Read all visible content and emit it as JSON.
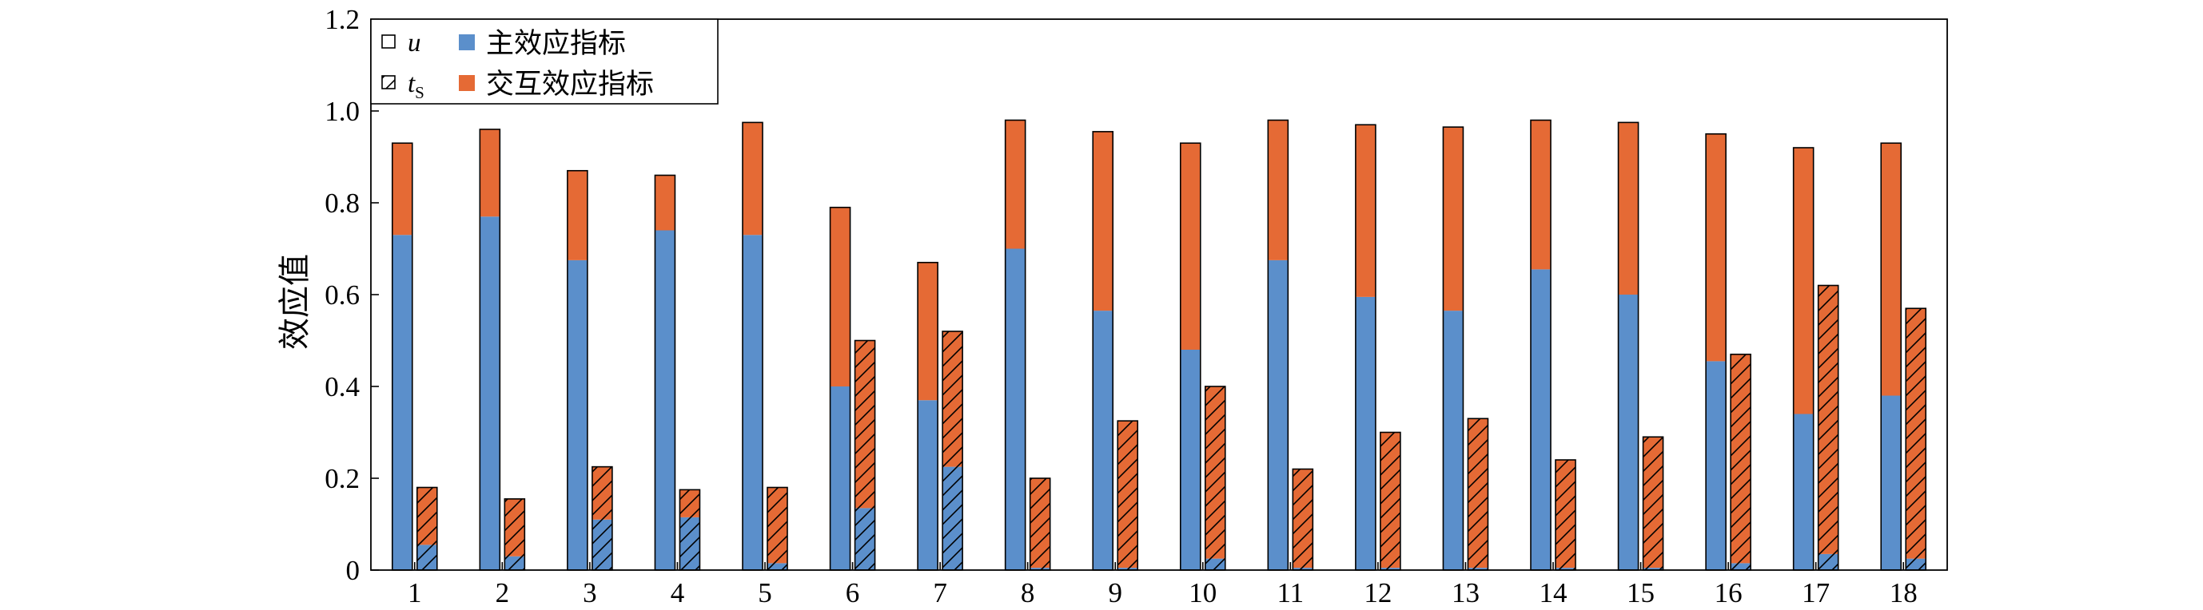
{
  "chart_data": {
    "type": "bar",
    "stacked": true,
    "grouped": true,
    "ylabel": "效应值",
    "xlabel": "",
    "ylim": [
      0,
      1.2
    ],
    "yticks": [
      "0",
      "0.2",
      "0.4",
      "0.6",
      "0.8",
      "1.0",
      "1.2"
    ],
    "ytick_values": [
      0,
      0.2,
      0.4,
      0.6,
      0.8,
      1.0,
      1.2
    ],
    "categories": [
      "1",
      "2",
      "3",
      "4",
      "5",
      "6",
      "7",
      "8",
      "9",
      "10",
      "11",
      "12",
      "13",
      "14",
      "15",
      "16",
      "17",
      "18"
    ],
    "legend": {
      "placement": "top-left",
      "hatch_items": [
        {
          "symbol": "u",
          "subscript": "",
          "style": "plain"
        },
        {
          "symbol": "t",
          "subscript": "S",
          "style": "hatched"
        }
      ],
      "color_items": [
        {
          "label": "主效应指标",
          "color": "#5b8fcb"
        },
        {
          "label": "交互效应指标",
          "color": "#e56a35"
        }
      ]
    },
    "series": [
      {
        "name": "u",
        "style": "plain",
        "main": [
          0.73,
          0.77,
          0.675,
          0.74,
          0.73,
          0.4,
          0.37,
          0.7,
          0.565,
          0.48,
          0.675,
          0.595,
          0.565,
          0.655,
          0.6,
          0.455,
          0.34,
          0.38
        ],
        "total": [
          0.93,
          0.96,
          0.87,
          0.86,
          0.975,
          0.79,
          0.67,
          0.98,
          0.955,
          0.93,
          0.98,
          0.97,
          0.965,
          0.98,
          0.975,
          0.95,
          0.92,
          0.93
        ]
      },
      {
        "name": "t_S",
        "style": "hatched",
        "main": [
          0.055,
          0.03,
          0.11,
          0.115,
          0.015,
          0.135,
          0.225,
          0.005,
          0.005,
          0.025,
          0.005,
          0.005,
          0.005,
          0.005,
          0.005,
          0.015,
          0.035,
          0.025
        ],
        "total": [
          0.18,
          0.155,
          0.225,
          0.175,
          0.18,
          0.5,
          0.52,
          0.2,
          0.325,
          0.4,
          0.22,
          0.3,
          0.33,
          0.24,
          0.29,
          0.47,
          0.62,
          0.57
        ]
      }
    ]
  },
  "colors": {
    "main": "#5b8fcb",
    "interaction": "#e56a35",
    "axis": "#000000",
    "hatch": "#000000"
  }
}
